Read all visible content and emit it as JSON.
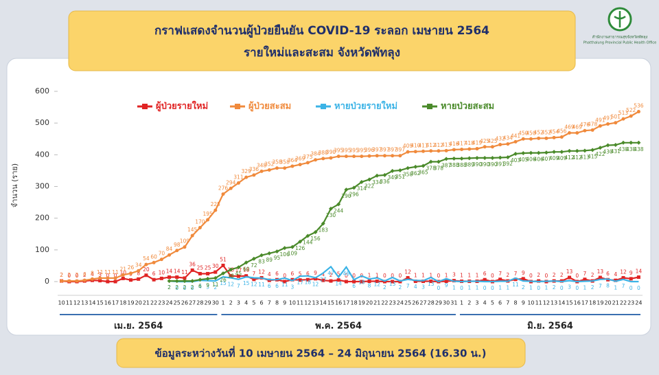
{
  "header": {
    "title": "กราฟแสดงจำนวนผู้ป่วยยืนยัน COVID-19 ระลอก เมษายน 2564",
    "subtitle": "รายใหม่และสะสม จังหวัดพัทลุง",
    "org_th": "สำนักงานสาธารณสุขจังหวัดพัทลุง",
    "org_en": "Phatthalung Provincial Public Health Office"
  },
  "chart_data": {
    "type": "line",
    "y_label": "จำนวน (ราย)",
    "categories": [
      "10",
      "11",
      "12",
      "13",
      "14",
      "15",
      "16",
      "17",
      "18",
      "19",
      "20",
      "21",
      "22",
      "23",
      "24",
      "25",
      "26",
      "27",
      "28",
      "29",
      "30",
      "1",
      "2",
      "3",
      "4",
      "5",
      "6",
      "7",
      "8",
      "9",
      "10",
      "11",
      "12",
      "13",
      "14",
      "15",
      "16",
      "17",
      "18",
      "19",
      "20",
      "21",
      "22",
      "23",
      "24",
      "25",
      "26",
      "27",
      "28",
      "29",
      "30",
      "31",
      "1",
      "2",
      "3",
      "4",
      "5",
      "6",
      "7",
      "8",
      "9",
      "10",
      "11",
      "12",
      "13",
      "14",
      "15",
      "16",
      "17",
      "18",
      "19",
      "20",
      "21",
      "22",
      "23",
      "24"
    ],
    "month_labels": [
      "เม.ย. 2564",
      "พ.ค. 2564",
      "มิ.ย. 2564"
    ],
    "ylim": [
      0,
      600
    ],
    "yticks": [
      0,
      100,
      200,
      300,
      400,
      500,
      600
    ],
    "series": [
      {
        "name": "ผู้ป่วยรายใหม่",
        "color": "#e02424",
        "marker": "square",
        "values": [
          2,
          0,
          0,
          2,
          4,
          3,
          0,
          0,
          10,
          5,
          8,
          20,
          6,
          10,
          14,
          14,
          11,
          36,
          25,
          25,
          30,
          51,
          18,
          17,
          18,
          7,
          12,
          4,
          6,
          0,
          6,
          5,
          6,
          9,
          4,
          2,
          5,
          0,
          0,
          0,
          1,
          1,
          0,
          0,
          0,
          12,
          1,
          1,
          1,
          0,
          1,
          3,
          1,
          1,
          1,
          6,
          0,
          7,
          2,
          7,
          9,
          0,
          2,
          0,
          2,
          2,
          13,
          0,
          7,
          2,
          13,
          6,
          4,
          12,
          9,
          14
        ]
      },
      {
        "name": "ผู้ป่วยสะสม",
        "color": "#f08a3c",
        "marker": "circle",
        "values": [
          2,
          2,
          2,
          4,
          8,
          11,
          11,
          11,
          21,
          26,
          34,
          54,
          60,
          70,
          84,
          98,
          109,
          145,
          170,
          195,
          225,
          276,
          294,
          311,
          329,
          336,
          348,
          352,
          358,
          358,
          364,
          369,
          375,
          384,
          388,
          390,
          395,
          395,
          395,
          395,
          396,
          397,
          397,
          397,
          397,
          409,
          410,
          411,
          412,
          412,
          413,
          416,
          417,
          418,
          419,
          425,
          425,
          432,
          434,
          441,
          450,
          450,
          452,
          452,
          454,
          456,
          469,
          469,
          476,
          478,
          491,
          497,
          501,
          513,
          522,
          536
        ]
      },
      {
        "name": "หายป่วยรายใหม่",
        "color": "#3bb3e6",
        "marker": "none",
        "values": [
          null,
          null,
          null,
          null,
          null,
          null,
          null,
          null,
          null,
          null,
          null,
          null,
          null,
          null,
          2,
          0,
          0,
          0,
          4,
          3,
          2,
          15,
          12,
          7,
          15,
          12,
          11,
          6,
          6,
          11,
          3,
          17,
          18,
          12,
          27,
          47,
          14,
          46,
          6,
          18,
          8,
          12,
          2,
          13,
          2,
          7,
          4,
          3,
          13,
          0,
          9,
          1,
          0,
          1,
          1,
          0,
          0,
          1,
          1,
          11,
          2,
          1,
          0,
          1,
          2,
          0,
          3,
          0,
          1,
          2,
          7,
          8,
          1,
          7,
          0,
          0
        ]
      },
      {
        "name": "หายป่วยสะสม",
        "color": "#4a8a2a",
        "marker": "diamond",
        "values": [
          null,
          null,
          null,
          null,
          null,
          null,
          null,
          null,
          null,
          null,
          null,
          null,
          null,
          null,
          2,
          2,
          2,
          2,
          6,
          9,
          11,
          26,
          38,
          45,
          60,
          72,
          83,
          89,
          95,
          106,
          109,
          126,
          144,
          156,
          183,
          230,
          244,
          290,
          296,
          314,
          322,
          334,
          336,
          349,
          351,
          358,
          362,
          365,
          378,
          378,
          387,
          388,
          388,
          389,
          390,
          390,
          390,
          391,
          392,
          403,
          405,
          406,
          406,
          407,
          409,
          409,
          412,
          412,
          413,
          415,
          422,
          430,
          431,
          438,
          438,
          438
        ]
      }
    ]
  },
  "footer": "ข้อมูลระหว่างวันที่ 10 เมษายน 2564 – 24 มิถุนายน 2564 (16.30 น.)"
}
